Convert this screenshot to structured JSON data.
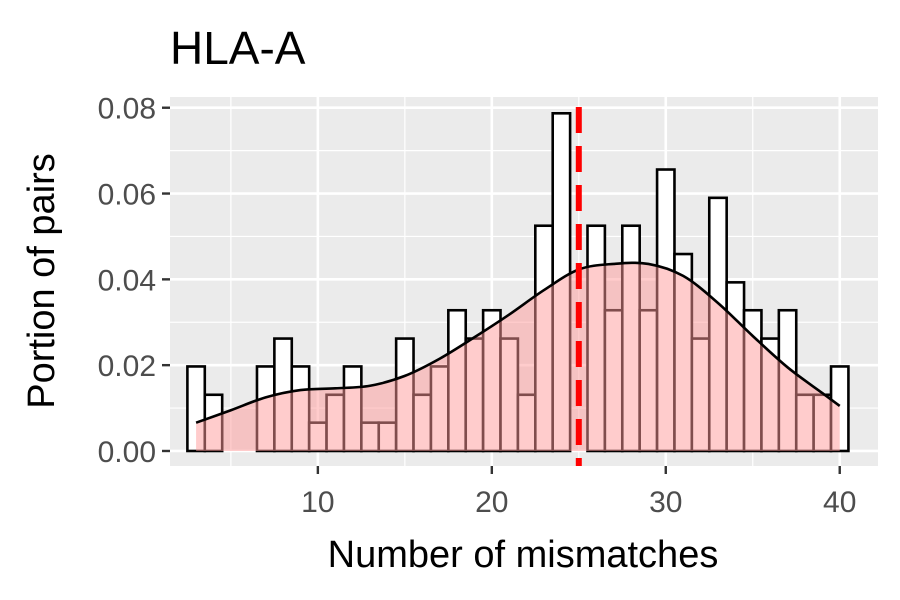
{
  "chart_data": {
    "type": "bar",
    "title": "HLA-A",
    "xlabel": "Number of mismatches",
    "ylabel": "Portion of pairs",
    "xlim": [
      1.5,
      42.2
    ],
    "ylim": [
      -0.0035,
      0.0825
    ],
    "x_ticks": [
      10,
      20,
      30,
      40
    ],
    "x_tick_labels": [
      "10",
      "20",
      "30",
      "40"
    ],
    "y_ticks": [
      0,
      0.02,
      0.04,
      0.06,
      0.08
    ],
    "y_tick_labels": [
      "0.00",
      "0.02",
      "0.04",
      "0.06",
      "0.08"
    ],
    "grid": true,
    "histogram": {
      "bin_width": 1,
      "x": [
        3,
        4,
        5,
        6,
        7,
        8,
        9,
        10,
        11,
        12,
        13,
        14,
        15,
        16,
        17,
        18,
        19,
        20,
        21,
        22,
        23,
        24,
        25,
        26,
        27,
        28,
        29,
        30,
        31,
        32,
        33,
        34,
        35,
        36,
        37,
        38,
        39,
        40
      ],
      "values": [
        0.0197,
        0.0131,
        0,
        0,
        0.0197,
        0.0262,
        0.0197,
        0.0066,
        0.0131,
        0.0197,
        0.0066,
        0.0066,
        0.0262,
        0.0131,
        0.0197,
        0.0328,
        0.0262,
        0.0328,
        0.0262,
        0.0131,
        0.0525,
        0.0787,
        0,
        0.0525,
        0.0328,
        0.0525,
        0.0328,
        0.0656,
        0.0459,
        0.0262,
        0.059,
        0.0393,
        0.0328,
        0.0262,
        0.0328,
        0.0131,
        0.0131,
        0.0197
      ],
      "fill": "#ffffff",
      "outline": "#000000"
    },
    "density": {
      "x": [
        3,
        5,
        7,
        9,
        11,
        13,
        15,
        17,
        19,
        21,
        23,
        25,
        27,
        29,
        31,
        33,
        35,
        37,
        39,
        40
      ],
      "y": [
        0.0066,
        0.0095,
        0.0125,
        0.0142,
        0.0146,
        0.0152,
        0.0175,
        0.0215,
        0.0265,
        0.0318,
        0.0375,
        0.0423,
        0.0436,
        0.0436,
        0.0408,
        0.0345,
        0.0268,
        0.0195,
        0.0135,
        0.0105
      ],
      "fill": "#ff9999",
      "fill_opacity": 0.5,
      "line": "#000000"
    },
    "reference_line": {
      "x": 25,
      "color": "#ff0000",
      "style": "dashed"
    },
    "panel_background": "#ebebeb",
    "grid_color": "#ffffff"
  }
}
